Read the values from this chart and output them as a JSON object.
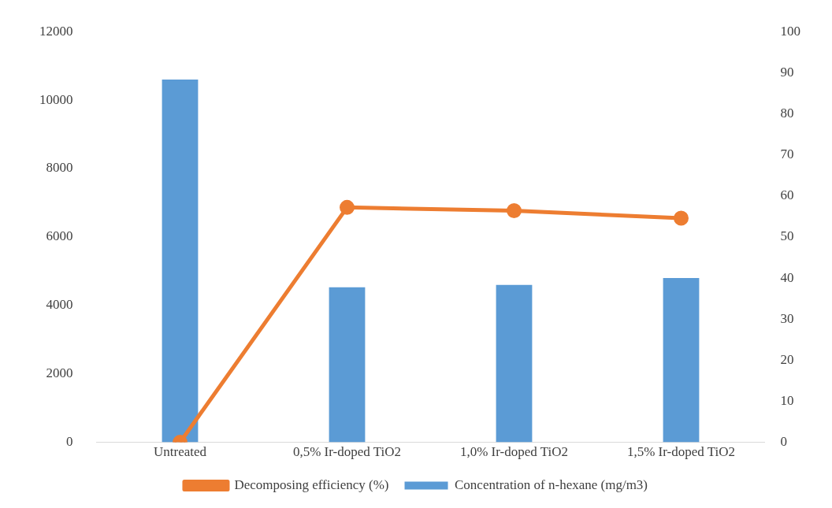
{
  "chart_data": {
    "type": "bar",
    "categories": [
      "Untreated",
      "0,5% Ir-doped TiO2",
      "1,0% Ir-doped TiO2",
      "1,5% Ir-doped TiO2"
    ],
    "series": [
      {
        "name": "Concentration of n-hexane (mg/m3)",
        "color": "#5b9bd5",
        "values": [
          10600,
          4530,
          4600,
          4800
        ]
      },
      {
        "name": "Decomposing efficiency (%)",
        "type": "line",
        "axis": "y2",
        "color": "#ed7d31",
        "values": [
          0,
          57.2,
          56.4,
          54.6
        ]
      }
    ],
    "ylim": [
      0,
      12000
    ],
    "yticks": [
      0,
      2000,
      4000,
      6000,
      8000,
      10000,
      12000
    ],
    "y2lim": [
      0,
      100
    ],
    "y2ticks": [
      0,
      10,
      20,
      30,
      40,
      50,
      60,
      70,
      80,
      90,
      100
    ],
    "grid": false,
    "legend": "bottom",
    "marker": "circle",
    "line_style": "solid"
  }
}
